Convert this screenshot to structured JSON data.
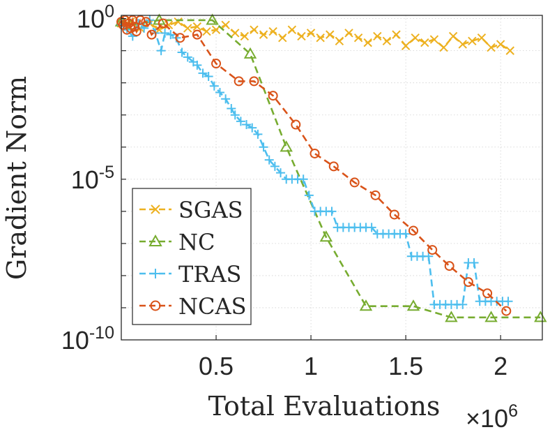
{
  "chart_data": {
    "type": "line",
    "title": "",
    "xlabel": "Total Evaluations",
    "x_multiplier": {
      "times": "×",
      "base": "10",
      "exp": "6"
    },
    "ylabel": "Gradient Norm",
    "xlim": [
      0,
      2.22
    ],
    "ylim_log10": [
      -10,
      0.1
    ],
    "yscale": "log",
    "grid": true,
    "legend_position": "lower-left",
    "x_ticks": [
      {
        "value": 0.5,
        "label": "0.5"
      },
      {
        "value": 1,
        "label": "1"
      },
      {
        "value": 1.5,
        "label": "1.5"
      },
      {
        "value": 2,
        "label": "2"
      }
    ],
    "y_ticks": [
      {
        "value": 0,
        "base": "10",
        "exp": "0"
      },
      {
        "value": -5,
        "base": "10",
        "exp": "-5"
      },
      {
        "value": -10,
        "base": "10",
        "exp": "-10"
      }
    ],
    "series": [
      {
        "name": "SGAS",
        "color": "#EDB120",
        "marker": "x",
        "x": [
          0.0,
          0.05,
          0.1,
          0.15,
          0.2,
          0.25,
          0.3,
          0.35,
          0.4,
          0.45,
          0.5,
          0.55,
          0.6,
          0.65,
          0.7,
          0.75,
          0.8,
          0.85,
          0.9,
          0.95,
          1.0,
          1.05,
          1.1,
          1.15,
          1.2,
          1.25,
          1.3,
          1.35,
          1.4,
          1.45,
          1.5,
          1.55,
          1.6,
          1.65,
          1.7,
          1.75,
          1.8,
          1.85,
          1.9,
          1.95,
          2.0,
          2.05
        ],
        "log10_y": [
          -0.15,
          -0.1,
          -0.3,
          -0.15,
          -0.35,
          -0.2,
          -0.1,
          -0.3,
          -0.25,
          -0.4,
          -0.35,
          -0.2,
          -0.45,
          -0.55,
          -0.35,
          -0.5,
          -0.4,
          -0.6,
          -0.35,
          -0.55,
          -0.45,
          -0.6,
          -0.5,
          -0.7,
          -0.45,
          -0.6,
          -0.75,
          -0.55,
          -0.7,
          -0.5,
          -0.85,
          -0.6,
          -0.75,
          -0.65,
          -0.9,
          -0.55,
          -0.8,
          -0.7,
          -0.6,
          -0.9,
          -0.8,
          -1.0
        ]
      },
      {
        "name": "NC",
        "color": "#77AC30",
        "marker": "triangle",
        "x": [
          0.0,
          0.05,
          0.2,
          0.48,
          0.68,
          0.87,
          1.08,
          1.29,
          1.54,
          1.74,
          1.95,
          2.21
        ],
        "log10_y": [
          -0.1,
          -0.2,
          -0.05,
          -0.05,
          -1.1,
          -4.0,
          -6.8,
          -8.95,
          -8.95,
          -9.3,
          -9.3,
          -9.3
        ]
      },
      {
        "name": "TRAS",
        "color": "#4DBEEE",
        "marker": "plus",
        "x": [
          0.0,
          0.03,
          0.06,
          0.09,
          0.12,
          0.15,
          0.18,
          0.21,
          0.23,
          0.26,
          0.29,
          0.32,
          0.35,
          0.38,
          0.4,
          0.43,
          0.46,
          0.49,
          0.52,
          0.55,
          0.58,
          0.6,
          0.63,
          0.66,
          0.69,
          0.72,
          0.75,
          0.78,
          0.81,
          0.84,
          0.87,
          0.9,
          0.93,
          0.96,
          0.99,
          1.02,
          1.05,
          1.08,
          1.11,
          1.14,
          1.17,
          1.2,
          1.23,
          1.26,
          1.29,
          1.32,
          1.35,
          1.38,
          1.41,
          1.44,
          1.47,
          1.5,
          1.53,
          1.56,
          1.59,
          1.62,
          1.65,
          1.68,
          1.71,
          1.74,
          1.77,
          1.8,
          1.83,
          1.86,
          1.89,
          1.92,
          1.95,
          1.98,
          2.01,
          2.04
        ],
        "log10_y": [
          -0.2,
          -0.35,
          -0.55,
          -0.15,
          -0.3,
          -0.05,
          -0.45,
          -1.0,
          -0.45,
          -0.5,
          -0.6,
          -1.05,
          -1.2,
          -1.35,
          -1.45,
          -1.7,
          -1.8,
          -2.1,
          -2.3,
          -2.5,
          -2.8,
          -3.0,
          -3.2,
          -3.3,
          -3.4,
          -3.6,
          -4.0,
          -4.4,
          -4.6,
          -4.8,
          -5.0,
          -5.0,
          -5.0,
          -5.0,
          -5.5,
          -6.0,
          -6.0,
          -6.0,
          -6.0,
          -6.5,
          -6.5,
          -6.5,
          -6.5,
          -6.5,
          -6.5,
          -6.5,
          -6.7,
          -6.7,
          -6.7,
          -6.7,
          -6.7,
          -6.7,
          -7.4,
          -7.4,
          -7.4,
          -7.4,
          -8.9,
          -8.9,
          -8.9,
          -8.9,
          -8.9,
          -8.9,
          -7.6,
          -7.6,
          -8.8,
          -8.8,
          -8.8,
          -8.8,
          -8.8,
          -8.8
        ],
        "x_full": true
      },
      {
        "name": "NCAS",
        "color": "#D95319",
        "marker": "circle",
        "x": [
          0.0,
          0.01,
          0.02,
          0.03,
          0.04,
          0.05,
          0.06,
          0.07,
          0.08,
          0.1,
          0.13,
          0.16,
          0.22,
          0.31,
          0.4,
          0.5,
          0.62,
          0.7,
          0.8,
          0.92,
          1.02,
          1.12,
          1.23,
          1.34,
          1.44,
          1.54,
          1.64,
          1.73,
          1.83,
          1.93,
          2.03
        ],
        "log10_y": [
          -0.1,
          -0.2,
          -0.05,
          -0.35,
          -0.15,
          -0.3,
          -0.05,
          -0.25,
          -0.4,
          -0.05,
          -0.1,
          -0.5,
          -0.15,
          -0.6,
          -0.5,
          -1.4,
          -1.95,
          -1.95,
          -2.4,
          -3.3,
          -4.2,
          -4.6,
          -5.1,
          -5.5,
          -6.1,
          -6.6,
          -7.2,
          -7.7,
          -8.2,
          -8.55,
          -9.1
        ]
      }
    ]
  }
}
